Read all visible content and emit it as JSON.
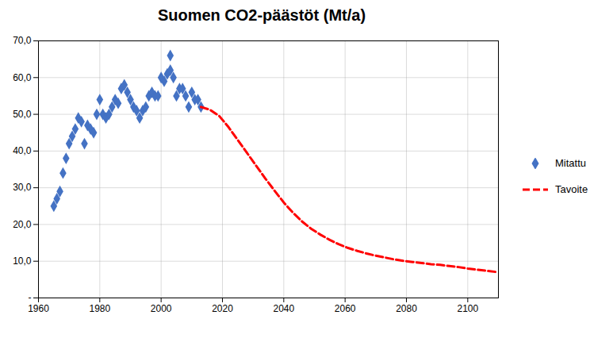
{
  "chart_data": {
    "type": "scatter",
    "title": "Suomen CO2-päästöt (Mt/a)",
    "xlim": [
      1960,
      2110
    ],
    "ylim": [
      0,
      70
    ],
    "xticks": [
      1960,
      1980,
      2000,
      2020,
      2040,
      2060,
      2080,
      2100
    ],
    "yticks": [
      {
        "value": 0,
        "label": "-"
      },
      {
        "value": 10,
        "label": "10,0"
      },
      {
        "value": 20,
        "label": "20,0"
      },
      {
        "value": 30,
        "label": "30,0"
      },
      {
        "value": 40,
        "label": "40,0"
      },
      {
        "value": 50,
        "label": "50,0"
      },
      {
        "value": 60,
        "label": "60,0"
      },
      {
        "value": 70,
        "label": "70,0"
      }
    ],
    "grid": true,
    "legend": "right",
    "series": [
      {
        "name": "Mitattu",
        "type": "scatter",
        "color": "#4472C4",
        "marker": "diamond",
        "x": [
          1965,
          1966,
          1967,
          1968,
          1969,
          1970,
          1971,
          1972,
          1973,
          1974,
          1975,
          1976,
          1977,
          1978,
          1979,
          1980,
          1981,
          1982,
          1983,
          1984,
          1985,
          1986,
          1987,
          1988,
          1989,
          1990,
          1991,
          1992,
          1993,
          1994,
          1995,
          1996,
          1997,
          1998,
          1999,
          2000,
          2001,
          2002,
          2003,
          2004,
          2005,
          2006,
          2007,
          2008,
          2009,
          2010,
          2011,
          2012,
          2013,
          2003
        ],
        "values": [
          25,
          27,
          29,
          34,
          38,
          42,
          44,
          46,
          49,
          48,
          42,
          47,
          46,
          45,
          50,
          54,
          50,
          49,
          50,
          52,
          54,
          53,
          57,
          58,
          56,
          54,
          52,
          51,
          49,
          51,
          52,
          55,
          56,
          55,
          55,
          60,
          59,
          61,
          62,
          60,
          55,
          57,
          57,
          55,
          52,
          56,
          54,
          54,
          52,
          66
        ]
      },
      {
        "name": "Tavoite",
        "type": "line",
        "color": "#FF0000",
        "line_style": "dashed",
        "x": [
          2013,
          2016,
          2019,
          2022,
          2025,
          2028,
          2031,
          2034,
          2037,
          2040,
          2043,
          2046,
          2049,
          2052,
          2055,
          2058,
          2061,
          2064,
          2067,
          2070,
          2073,
          2076,
          2079,
          2082,
          2085,
          2088,
          2091,
          2094,
          2097,
          2100,
          2110
        ],
        "values": [
          52.0,
          51.2,
          49.5,
          46.5,
          43.0,
          39.5,
          36.0,
          32.5,
          29.2,
          26.0,
          23.2,
          20.8,
          18.8,
          17.2,
          15.8,
          14.6,
          13.6,
          12.8,
          12.1,
          11.5,
          11.0,
          10.5,
          10.1,
          9.8,
          9.5,
          9.2,
          9.0,
          8.7,
          8.4,
          8.0,
          7.0
        ]
      }
    ]
  }
}
